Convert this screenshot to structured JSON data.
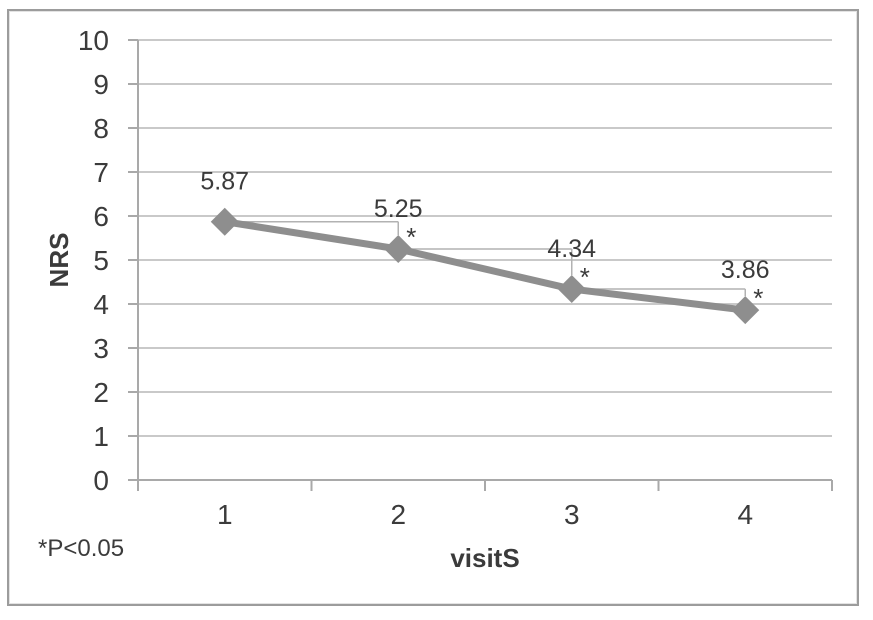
{
  "figure": {
    "background": "#ffffff",
    "border_color": "#9c9c9c"
  },
  "chart_data": {
    "type": "line",
    "title": "",
    "xlabel": "visitS",
    "ylabel": "NRS",
    "x": [
      1,
      2,
      3,
      4
    ],
    "x_tick_labels": [
      "1",
      "2",
      "3",
      "4"
    ],
    "y_tick_labels": [
      "0",
      "1",
      "2",
      "3",
      "4",
      "5",
      "6",
      "7",
      "8",
      "9",
      "10"
    ],
    "ylim": [
      0,
      10
    ],
    "grid": true,
    "legend": false,
    "series": [
      {
        "name": "NRS",
        "values": [
          5.87,
          5.25,
          4.34,
          3.86
        ],
        "data_labels": [
          "5.87",
          "5.25",
          "4.34",
          "3.86"
        ],
        "color": "#8e8e8e",
        "marker": "diamond"
      }
    ],
    "annotations": {
      "significance_marker": "*",
      "significant_visits": [
        2,
        3,
        4
      ],
      "footnote": "*P<0.05"
    }
  }
}
